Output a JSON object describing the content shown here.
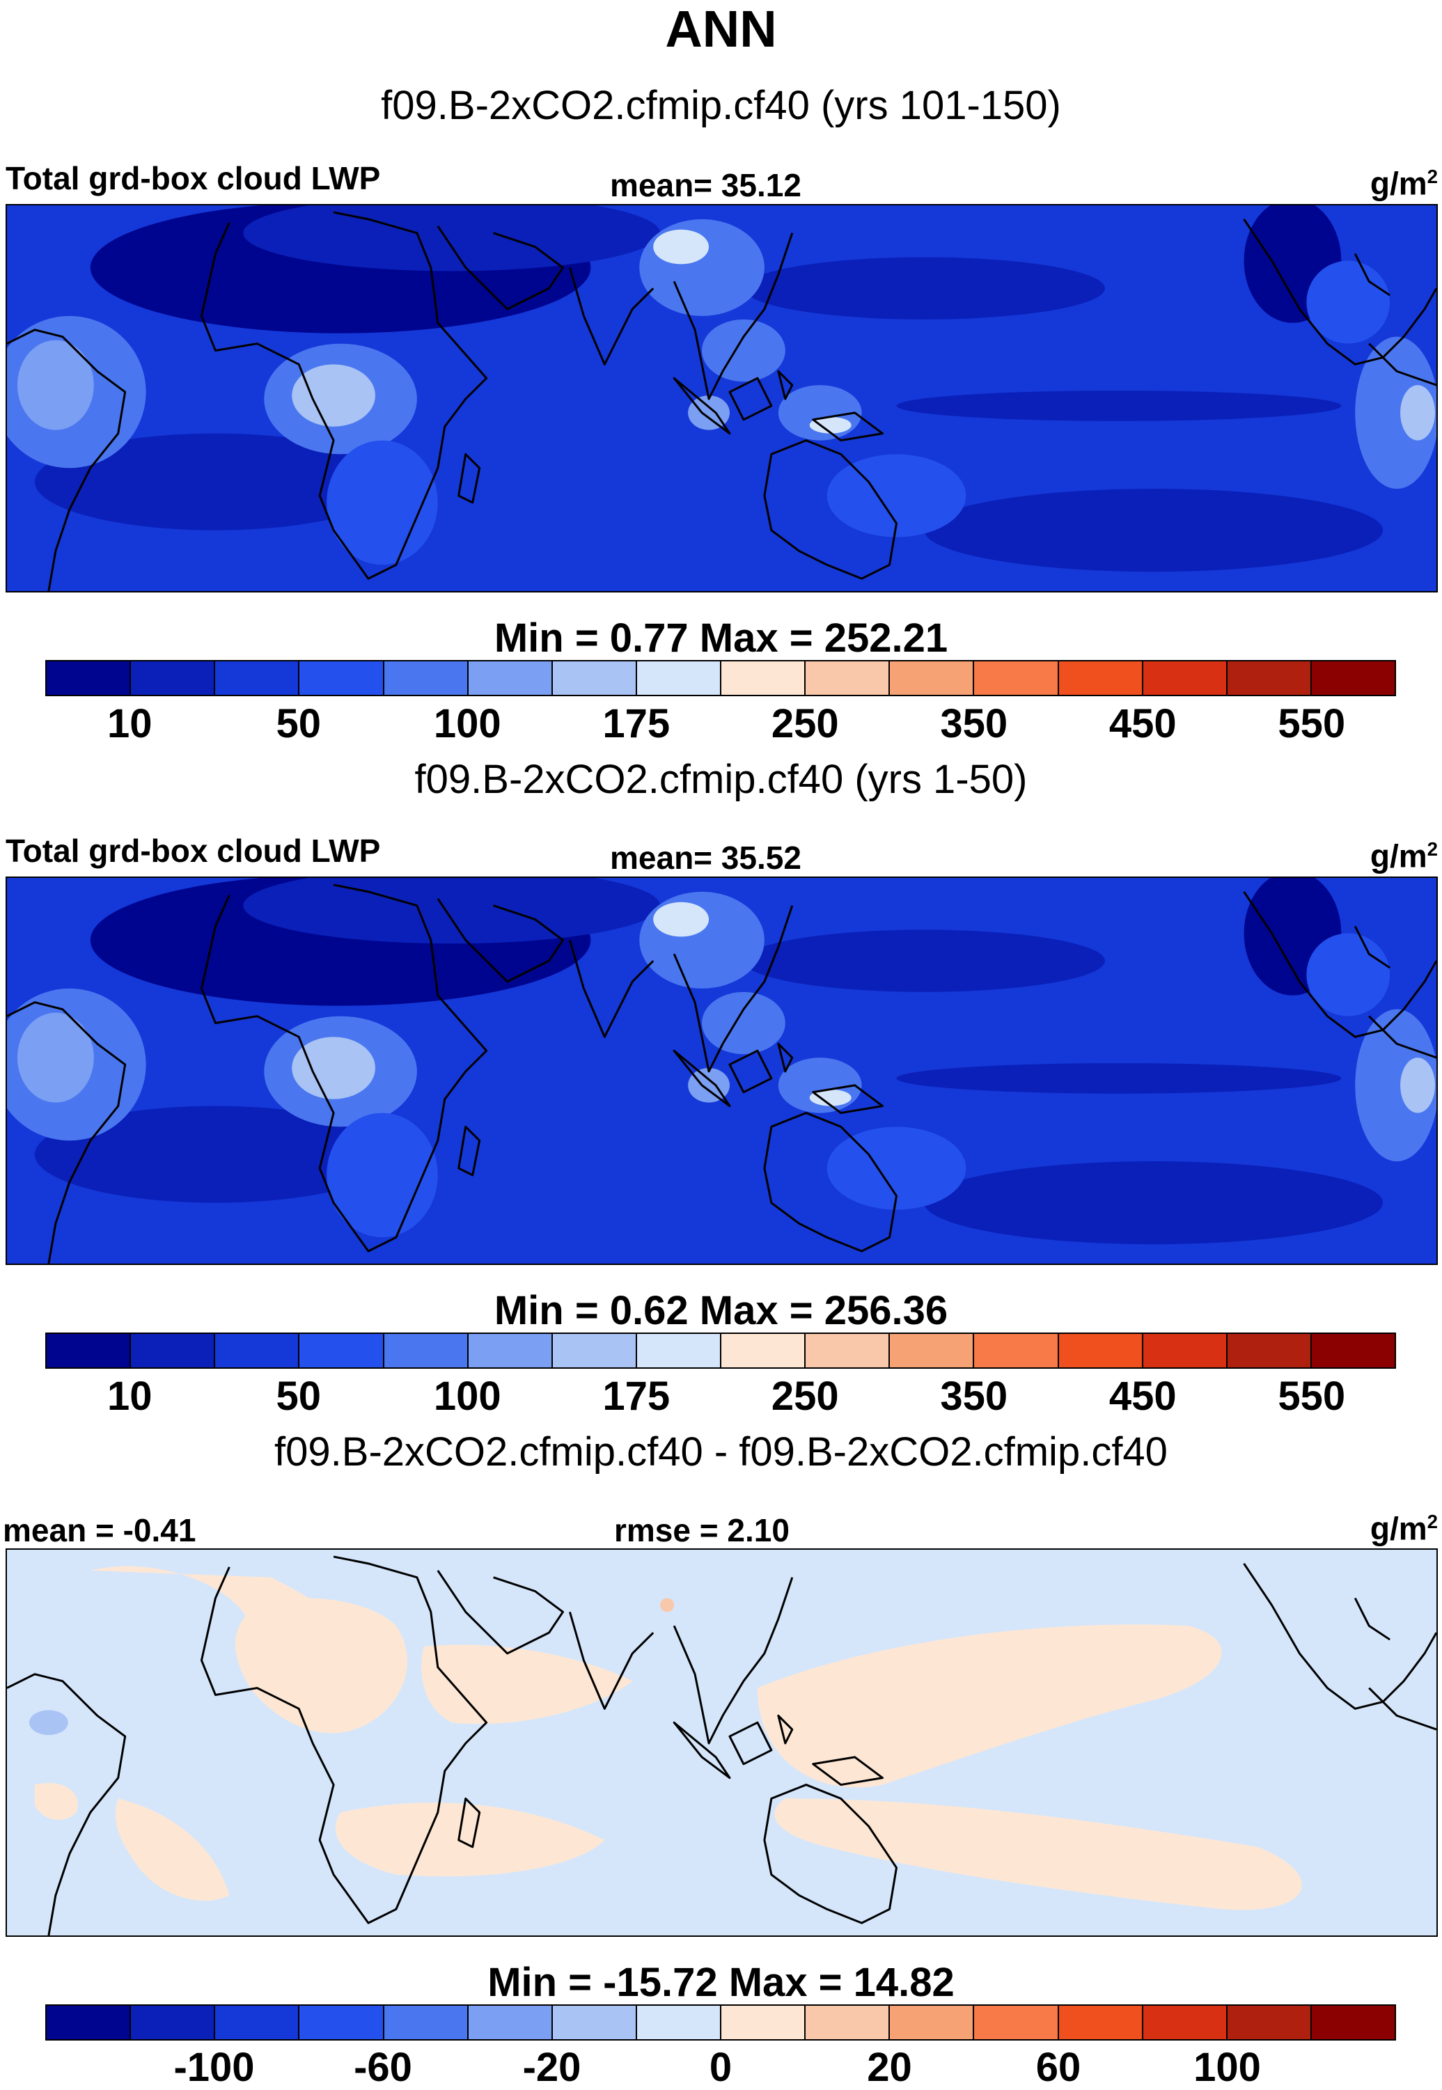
{
  "title": "ANN",
  "colors": {
    "levels": [
      "#00058f",
      "#0a20b8",
      "#1538d8",
      "#2450ee",
      "#4a77f0",
      "#7b9ff2",
      "#a9c3f5",
      "#d5e6fb",
      "#fde7d4",
      "#f9c7a9",
      "#f7a275",
      "#f77a48",
      "#f0501e",
      "#d73013",
      "#b0200e",
      "#8b0000"
    ],
    "ocean_abs": "#1c44df",
    "ocean_dark": "#0e2fc6",
    "diff_blue": "#d4e5fb",
    "diff_cream": "#fde7d4"
  },
  "panels": [
    {
      "case": "f09.B-2xCO2.cfmip.cf40 (yrs 101-150)",
      "left": "Total grd-box cloud LWP",
      "center": "mean=  35.12",
      "units": "g/m",
      "units_sup": "2",
      "minmax": "Min =   0.77 Max = 252.21",
      "ticks": [
        "10",
        "50",
        "100",
        "175",
        "250",
        "350",
        "450",
        "550"
      ]
    },
    {
      "case": "f09.B-2xCO2.cfmip.cf40 (yrs 1-50)",
      "left": "Total grd-box cloud LWP",
      "center": "mean=  35.52",
      "units": "g/m",
      "units_sup": "2",
      "minmax": "Min =   0.62 Max = 256.36",
      "ticks": [
        "10",
        "50",
        "100",
        "175",
        "250",
        "350",
        "450",
        "550"
      ]
    },
    {
      "case": "f09.B-2xCO2.cfmip.cf40 - f09.B-2xCO2.cfmip.cf40",
      "left": "mean =  -0.41",
      "center": "rmse =   2.10",
      "units": "g/m",
      "units_sup": "2",
      "minmax": "Min = -15.72 Max =  14.82",
      "ticks": [
        "-100",
        "-60",
        "-20",
        "0",
        "20",
        "60",
        "100"
      ]
    }
  ]
}
